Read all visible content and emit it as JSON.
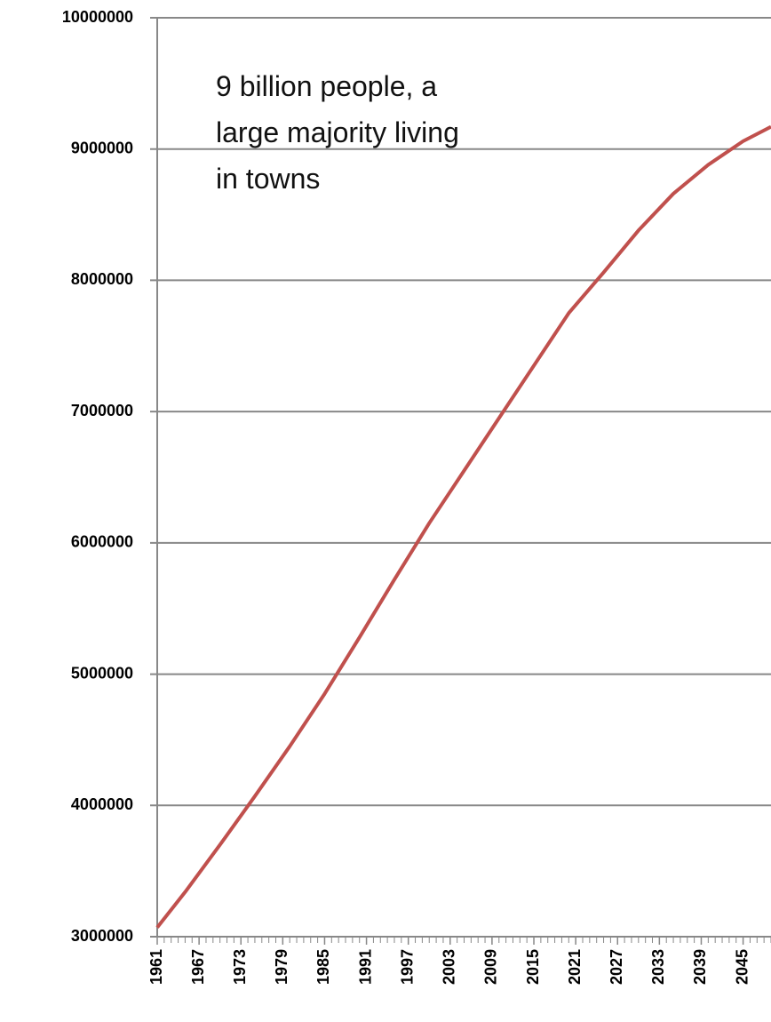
{
  "chart_data": {
    "type": "line",
    "annotation": [
      "9 billion people, a",
      "large majority living",
      "in towns"
    ],
    "x": [
      1961,
      1965,
      1970,
      1975,
      1980,
      1985,
      1990,
      1995,
      2000,
      2005,
      2010,
      2015,
      2020,
      2025,
      2030,
      2035,
      2040,
      2045,
      2049
    ],
    "series": [
      {
        "color": "#c0504d",
        "values": [
          3070000,
          3340000,
          3700000,
          4070000,
          4450000,
          4850000,
          5280000,
          5720000,
          6150000,
          6550000,
          6950000,
          7350000,
          7750000,
          8060000,
          8380000,
          8660000,
          8880000,
          9060000,
          9170000
        ]
      }
    ],
    "xlim": [
      1961,
      2049
    ],
    "xticks": [
      1961,
      1967,
      1973,
      1979,
      1985,
      1991,
      1997,
      2003,
      2009,
      2015,
      2021,
      2027,
      2033,
      2039,
      2045
    ],
    "ylim": [
      3000000,
      10000000
    ],
    "yticks": [
      3000000,
      4000000,
      5000000,
      6000000,
      7000000,
      8000000,
      9000000,
      10000000
    ],
    "grid": true
  }
}
